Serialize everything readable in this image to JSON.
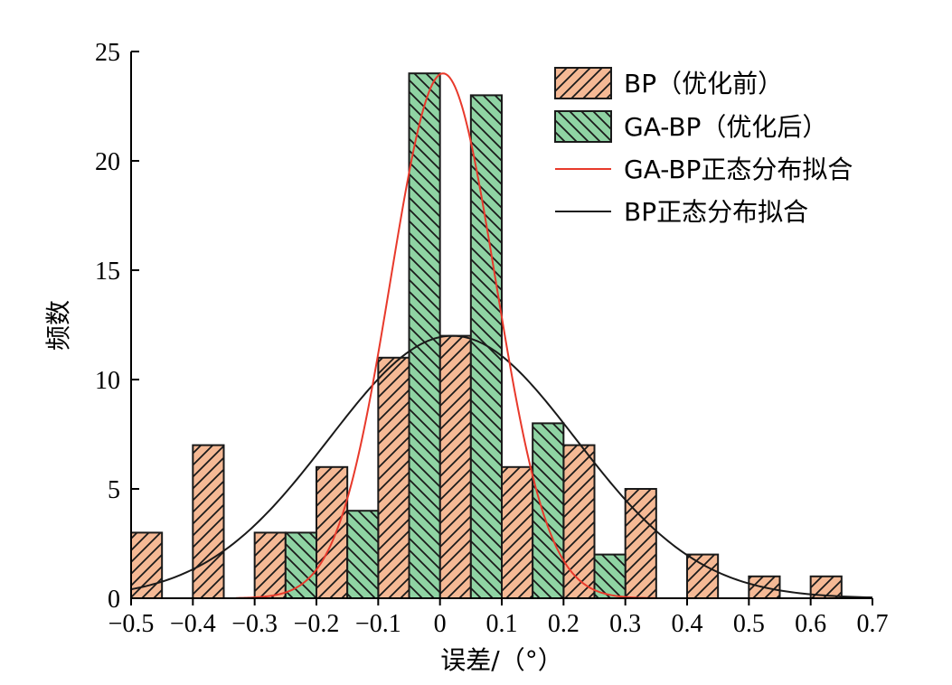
{
  "chart_data": {
    "type": "bar",
    "xlabel": "误差/（°）",
    "ylabel": "频数",
    "xlim": [
      -0.5,
      0.7
    ],
    "ylim": [
      0,
      25
    ],
    "x_ticks": [
      "−0.5",
      "−0.4",
      "−0.3",
      "−0.2",
      "−0.1",
      "0",
      "0.1",
      "0.2",
      "0.3",
      "0.4",
      "0.5",
      "0.6",
      "0.7"
    ],
    "y_ticks": [
      "0",
      "5",
      "10",
      "15",
      "20",
      "25"
    ],
    "bin_width": 0.05,
    "grid": false,
    "legend_position": "top-right",
    "series": [
      {
        "name": "BP（优化前）",
        "kind": "histogram",
        "color": "#f5b995",
        "hatch": "forward-diagonal",
        "bins": [
          {
            "x": -0.475,
            "value": 3
          },
          {
            "x": -0.375,
            "value": 7
          },
          {
            "x": -0.275,
            "value": 3
          },
          {
            "x": -0.175,
            "value": 6
          },
          {
            "x": -0.075,
            "value": 11
          },
          {
            "x": 0.025,
            "value": 12
          },
          {
            "x": 0.125,
            "value": 6
          },
          {
            "x": 0.225,
            "value": 7
          },
          {
            "x": 0.325,
            "value": 5
          },
          {
            "x": 0.425,
            "value": 2
          },
          {
            "x": 0.525,
            "value": 1
          },
          {
            "x": 0.625,
            "value": 1
          }
        ]
      },
      {
        "name": "GA-BP（优化后）",
        "kind": "histogram",
        "color": "#8fd3a3",
        "hatch": "backward-diagonal",
        "bins": [
          {
            "x": -0.225,
            "value": 3
          },
          {
            "x": -0.125,
            "value": 4
          },
          {
            "x": -0.025,
            "value": 24
          },
          {
            "x": 0.075,
            "value": 23
          },
          {
            "x": 0.175,
            "value": 8
          },
          {
            "x": 0.275,
            "value": 2
          }
        ]
      },
      {
        "name": "GA-BP正态分布拟合",
        "kind": "line",
        "color": "#e8392b",
        "distribution": {
          "mean": 0.005,
          "std": 0.085,
          "peak": 24,
          "x_range": [
            -0.33,
            0.35
          ]
        }
      },
      {
        "name": "BP正态分布拟合",
        "kind": "line",
        "color": "#1a1a1a",
        "distribution": {
          "mean": 0.02,
          "std": 0.2,
          "peak": 12,
          "x_range": [
            -0.5,
            0.7
          ]
        }
      }
    ]
  }
}
